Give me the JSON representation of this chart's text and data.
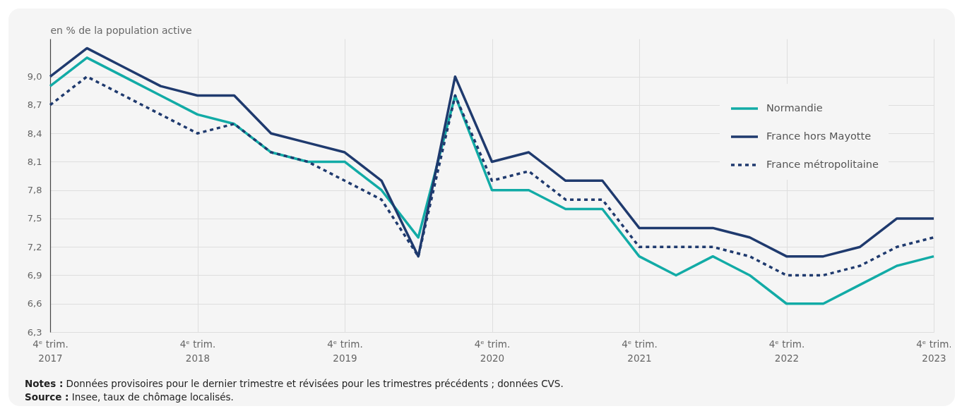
{
  "chart_data": {
    "type": "line",
    "ylabel": "en % de la population active",
    "categories": [
      "4ᵉ trim.\n2017",
      null,
      null,
      null,
      "4ᵉ trim.\n2018",
      null,
      null,
      null,
      "4ᵉ trim.\n2019",
      null,
      null,
      null,
      "4ᵉ trim.\n2020",
      null,
      null,
      null,
      "4ᵉ trim.\n2021",
      null,
      null,
      null,
      "4ᵉ trim.\n2022",
      null,
      null,
      null,
      "4ᵉ trim.\n2023"
    ],
    "series": [
      {
        "name": "Normandie",
        "color": "#12aba6",
        "values": [
          8.9,
          9.2,
          9.0,
          8.8,
          8.6,
          8.5,
          8.2,
          8.1,
          8.1,
          7.8,
          7.3,
          8.8,
          7.8,
          7.8,
          7.6,
          7.6,
          7.1,
          6.9,
          7.1,
          6.9,
          6.6,
          6.6,
          6.8,
          7.0,
          7.1
        ]
      },
      {
        "name": "France hors Mayotte",
        "color": "#1f3a6e",
        "values": [
          9.0,
          9.3,
          9.1,
          8.9,
          8.8,
          8.8,
          8.4,
          8.3,
          8.2,
          7.9,
          7.1,
          9.0,
          8.1,
          8.2,
          7.9,
          7.9,
          7.4,
          7.4,
          7.4,
          7.3,
          7.1,
          7.1,
          7.2,
          7.5,
          7.5
        ]
      },
      {
        "name": "France métropolitaine",
        "color": "#1f3a6e",
        "line_style": "dotted",
        "values": [
          8.7,
          9.0,
          8.8,
          8.6,
          8.4,
          8.5,
          8.2,
          8.1,
          7.9,
          7.7,
          7.1,
          8.8,
          7.9,
          8.0,
          7.7,
          7.7,
          7.2,
          7.2,
          7.2,
          7.1,
          6.9,
          6.9,
          7.0,
          7.2,
          7.3
        ]
      }
    ],
    "ylim": [
      6.3,
      9.4
    ],
    "yticks": [
      {
        "value": 6.3,
        "label": "6,3"
      },
      {
        "value": 6.6,
        "label": "6,6"
      },
      {
        "value": 6.9,
        "label": "6,9"
      },
      {
        "value": 7.2,
        "label": "7,2"
      },
      {
        "value": 7.5,
        "label": "7,5"
      },
      {
        "value": 7.8,
        "label": "7,8"
      },
      {
        "value": 8.1,
        "label": "8,1"
      },
      {
        "value": 8.4,
        "label": "8,4"
      },
      {
        "value": 8.7,
        "label": "8,7"
      },
      {
        "value": 9.0,
        "label": "9,0"
      }
    ],
    "grid": true,
    "legend": "top right",
    "line_style": "solid",
    "annotations": [
      "Notes : Données provisoires pour le dernier trimestre et révisées pour les trimestres précédents ; données CVS.",
      "Source : Insee, taux de chômage localisés."
    ]
  }
}
